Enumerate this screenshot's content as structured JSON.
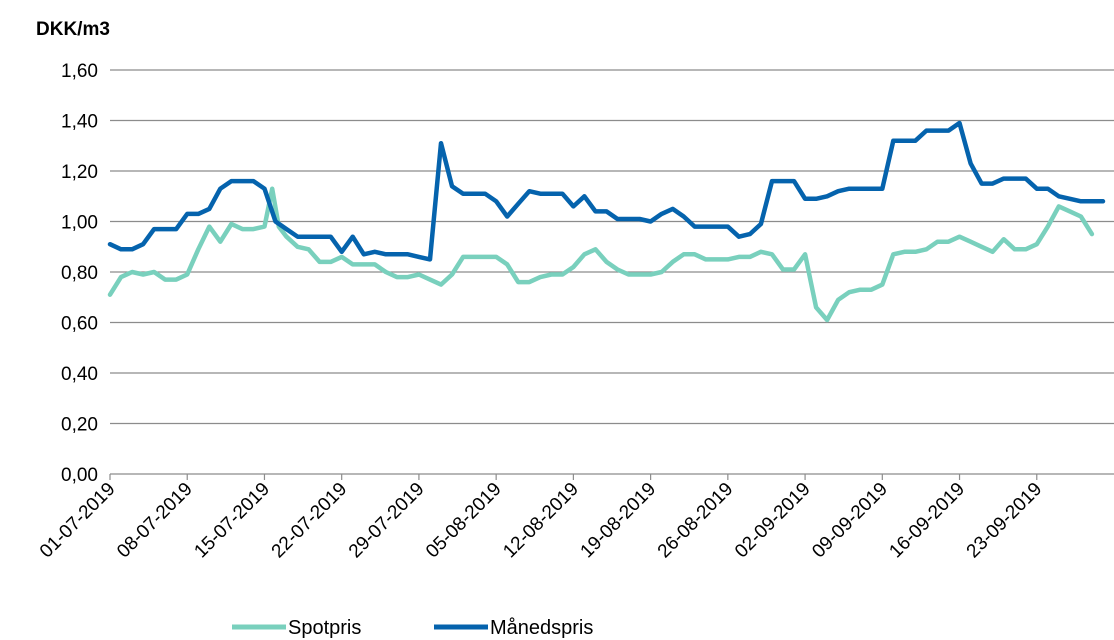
{
  "chart_data": {
    "type": "line",
    "ylabel": "DKK/m3",
    "ylim": [
      0,
      1.6
    ],
    "yticks": [
      "0,00",
      "0,20",
      "0,40",
      "0,60",
      "0,80",
      "1,00",
      "1,20",
      "1,40",
      "1,60"
    ],
    "xtick_labels": [
      "01-07-2019",
      "08-07-2019",
      "15-07-2019",
      "22-07-2019",
      "29-07-2019",
      "05-08-2019",
      "12-08-2019",
      "19-08-2019",
      "26-08-2019",
      "02-09-2019",
      "09-09-2019",
      "16-09-2019",
      "23-09-2019"
    ],
    "xtick_days": [
      0,
      7,
      14,
      21,
      28,
      35,
      42,
      49,
      56,
      63,
      70,
      77,
      84
    ],
    "x_day_range": [
      0,
      91
    ],
    "grid": "horizontal",
    "legend_position": "bottom",
    "series": [
      {
        "name": "Spotpris",
        "color": "#79D0BD",
        "points": [
          [
            0,
            0.71
          ],
          [
            1,
            0.78
          ],
          [
            2,
            0.8
          ],
          [
            3,
            0.79
          ],
          [
            4,
            0.8
          ],
          [
            5,
            0.77
          ],
          [
            6,
            0.77
          ],
          [
            7,
            0.79
          ],
          [
            8,
            0.89
          ],
          [
            9,
            0.98
          ],
          [
            10,
            0.92
          ],
          [
            11,
            0.99
          ],
          [
            12,
            0.97
          ],
          [
            13,
            0.97
          ],
          [
            14,
            0.98
          ],
          [
            14.7,
            1.13
          ],
          [
            15.3,
            0.98
          ],
          [
            16,
            0.94
          ],
          [
            17,
            0.9
          ],
          [
            18,
            0.89
          ],
          [
            19,
            0.84
          ],
          [
            20,
            0.84
          ],
          [
            21,
            0.86
          ],
          [
            22,
            0.83
          ],
          [
            23,
            0.83
          ],
          [
            24,
            0.83
          ],
          [
            25,
            0.8
          ],
          [
            26,
            0.78
          ],
          [
            27,
            0.78
          ],
          [
            28,
            0.79
          ],
          [
            29,
            0.77
          ],
          [
            30,
            0.75
          ],
          [
            31,
            0.79
          ],
          [
            32,
            0.86
          ],
          [
            33,
            0.86
          ],
          [
            34,
            0.86
          ],
          [
            35,
            0.86
          ],
          [
            36,
            0.83
          ],
          [
            37,
            0.76
          ],
          [
            38,
            0.76
          ],
          [
            39,
            0.78
          ],
          [
            40,
            0.79
          ],
          [
            41,
            0.79
          ],
          [
            42,
            0.82
          ],
          [
            43,
            0.87
          ],
          [
            44,
            0.89
          ],
          [
            45,
            0.84
          ],
          [
            46,
            0.81
          ],
          [
            47,
            0.79
          ],
          [
            48,
            0.79
          ],
          [
            49,
            0.79
          ],
          [
            50,
            0.8
          ],
          [
            51,
            0.84
          ],
          [
            52,
            0.87
          ],
          [
            53,
            0.87
          ],
          [
            54,
            0.85
          ],
          [
            55,
            0.85
          ],
          [
            56,
            0.85
          ],
          [
            57,
            0.86
          ],
          [
            58,
            0.86
          ],
          [
            59,
            0.88
          ],
          [
            60,
            0.87
          ],
          [
            61,
            0.81
          ],
          [
            62,
            0.81
          ],
          [
            63,
            0.87
          ],
          [
            64,
            0.66
          ],
          [
            65,
            0.61
          ],
          [
            66,
            0.69
          ],
          [
            67,
            0.72
          ],
          [
            68,
            0.73
          ],
          [
            69,
            0.73
          ],
          [
            70,
            0.75
          ],
          [
            71,
            0.87
          ],
          [
            72,
            0.88
          ],
          [
            73,
            0.88
          ],
          [
            74,
            0.89
          ],
          [
            75,
            0.92
          ],
          [
            76,
            0.92
          ],
          [
            77,
            0.94
          ],
          [
            78,
            0.92
          ],
          [
            79,
            0.9
          ],
          [
            80,
            0.88
          ],
          [
            81,
            0.93
          ],
          [
            82,
            0.89
          ],
          [
            83,
            0.89
          ],
          [
            84,
            0.91
          ],
          [
            85,
            0.98
          ],
          [
            86,
            1.06
          ],
          [
            87,
            1.04
          ],
          [
            88,
            1.02
          ],
          [
            89,
            0.95
          ]
        ]
      },
      {
        "name": "Månedspris",
        "color": "#0563AD",
        "points": [
          [
            0,
            0.91
          ],
          [
            1,
            0.89
          ],
          [
            2,
            0.89
          ],
          [
            3,
            0.91
          ],
          [
            4,
            0.97
          ],
          [
            5,
            0.97
          ],
          [
            6,
            0.97
          ],
          [
            7,
            1.03
          ],
          [
            8,
            1.03
          ],
          [
            9,
            1.05
          ],
          [
            10,
            1.13
          ],
          [
            11,
            1.16
          ],
          [
            12,
            1.16
          ],
          [
            13,
            1.16
          ],
          [
            14,
            1.13
          ],
          [
            15,
            1.0
          ],
          [
            16,
            0.97
          ],
          [
            17,
            0.94
          ],
          [
            18,
            0.94
          ],
          [
            19,
            0.94
          ],
          [
            20,
            0.94
          ],
          [
            21,
            0.88
          ],
          [
            22,
            0.94
          ],
          [
            23,
            0.87
          ],
          [
            24,
            0.88
          ],
          [
            25,
            0.87
          ],
          [
            26,
            0.87
          ],
          [
            27,
            0.87
          ],
          [
            28,
            0.86
          ],
          [
            29,
            0.85
          ],
          [
            30,
            1.31
          ],
          [
            31,
            1.14
          ],
          [
            32,
            1.11
          ],
          [
            33,
            1.11
          ],
          [
            34,
            1.11
          ],
          [
            35,
            1.08
          ],
          [
            36,
            1.02
          ],
          [
            37,
            1.07
          ],
          [
            38,
            1.12
          ],
          [
            39,
            1.11
          ],
          [
            40,
            1.11
          ],
          [
            41,
            1.11
          ],
          [
            42,
            1.06
          ],
          [
            43,
            1.1
          ],
          [
            44,
            1.04
          ],
          [
            45,
            1.04
          ],
          [
            46,
            1.01
          ],
          [
            47,
            1.01
          ],
          [
            48,
            1.01
          ],
          [
            49,
            1.0
          ],
          [
            50,
            1.03
          ],
          [
            51,
            1.05
          ],
          [
            52,
            1.02
          ],
          [
            53,
            0.98
          ],
          [
            54,
            0.98
          ],
          [
            55,
            0.98
          ],
          [
            56,
            0.98
          ],
          [
            57,
            0.94
          ],
          [
            58,
            0.95
          ],
          [
            59,
            0.99
          ],
          [
            60,
            1.16
          ],
          [
            61,
            1.16
          ],
          [
            62,
            1.16
          ],
          [
            63,
            1.09
          ],
          [
            64,
            1.09
          ],
          [
            65,
            1.1
          ],
          [
            66,
            1.12
          ],
          [
            67,
            1.13
          ],
          [
            68,
            1.13
          ],
          [
            69,
            1.13
          ],
          [
            70,
            1.13
          ],
          [
            71,
            1.32
          ],
          [
            72,
            1.32
          ],
          [
            73,
            1.32
          ],
          [
            74,
            1.36
          ],
          [
            75,
            1.36
          ],
          [
            76,
            1.36
          ],
          [
            77,
            1.39
          ],
          [
            78,
            1.23
          ],
          [
            79,
            1.15
          ],
          [
            80,
            1.15
          ],
          [
            81,
            1.17
          ],
          [
            82,
            1.17
          ],
          [
            83,
            1.17
          ],
          [
            84,
            1.13
          ],
          [
            85,
            1.13
          ],
          [
            86,
            1.1
          ],
          [
            87,
            1.09
          ],
          [
            88,
            1.08
          ],
          [
            89,
            1.08
          ],
          [
            90,
            1.08
          ]
        ]
      }
    ]
  }
}
